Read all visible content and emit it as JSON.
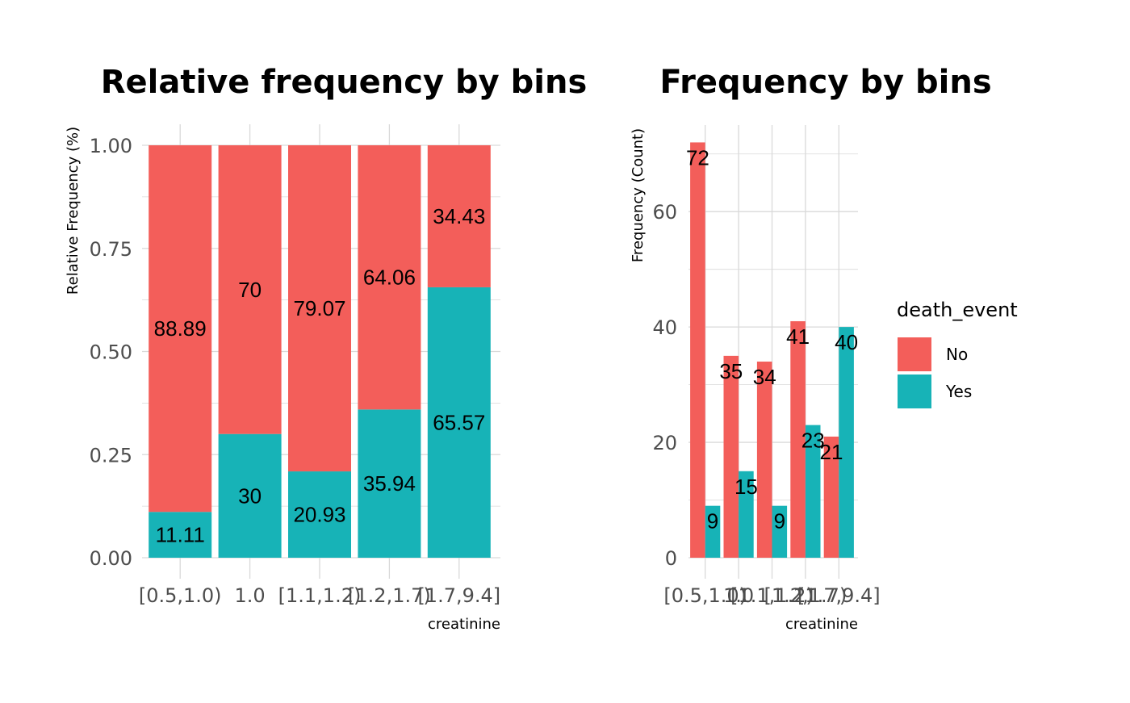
{
  "chart_data": [
    {
      "type": "bar",
      "stacked": true,
      "title": "Relative frequency by bins",
      "xlabel": "creatinine",
      "ylabel": "Relative Frequency (%)",
      "categories": [
        "[0.5,1.0)",
        "1.0",
        "[1.1,1.2)",
        "[1.2,1.7)",
        "[1.7,9.4]"
      ],
      "ylim": [
        0,
        1
      ],
      "yticks": [
        "0.00",
        "0.25",
        "0.50",
        "0.75",
        "1.00"
      ],
      "ytick_values": [
        0,
        0.25,
        0.5,
        0.75,
        1.0
      ],
      "series": [
        {
          "name": "Yes",
          "values": [
            0.1111,
            0.3,
            0.2093,
            0.3594,
            0.6557
          ],
          "labels": [
            "11.11",
            "30",
            "20.93",
            "35.94",
            "65.57"
          ]
        },
        {
          "name": "No",
          "values": [
            0.8889,
            0.7,
            0.7907,
            0.6406,
            0.3443
          ],
          "labels": [
            "88.89",
            "70",
            "79.07",
            "64.06",
            "34.43"
          ]
        }
      ],
      "grid": true
    },
    {
      "type": "bar",
      "stacked": false,
      "title": "Frequency by bins",
      "xlabel": "creatinine",
      "ylabel": "Frequency (Count)",
      "categories": [
        "[0.5,1.0)",
        "1.0",
        "[1.1,1.2)",
        "[1.2,1.7)",
        "[1.7,9.4]"
      ],
      "ylim": [
        0,
        75
      ],
      "yticks": [
        "0",
        "20",
        "40",
        "60"
      ],
      "ytick_values": [
        0,
        20,
        40,
        60
      ],
      "series": [
        {
          "name": "No",
          "values": [
            72,
            35,
            34,
            41,
            21
          ],
          "labels": [
            "72",
            "35",
            "34",
            "41",
            "21"
          ]
        },
        {
          "name": "Yes",
          "values": [
            9,
            15,
            9,
            23,
            40
          ],
          "labels": [
            "9",
            "15",
            "9",
            "23",
            "40"
          ]
        }
      ],
      "grid": true,
      "legend_position": "right"
    }
  ],
  "legend": {
    "title": "death_event",
    "items": [
      {
        "label": "No",
        "color": "#F35E5A"
      },
      {
        "label": "Yes",
        "color": "#17B3B7"
      }
    ]
  },
  "colors": {
    "No": "#F35E5A",
    "Yes": "#17B3B7",
    "grid": "#d9d9d9"
  }
}
